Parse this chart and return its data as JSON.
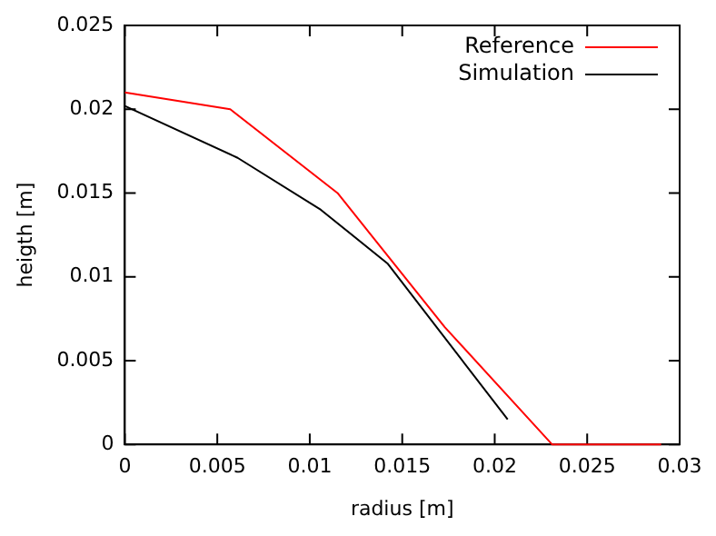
{
  "chart_data": {
    "type": "line",
    "xlabel": "radius [m]",
    "ylabel": "heigth [m]",
    "xlim": [
      0,
      0.03
    ],
    "ylim": [
      0,
      0.025
    ],
    "xticks": [
      0,
      0.005,
      0.01,
      0.015,
      0.02,
      0.025,
      0.03
    ],
    "yticks": [
      0,
      0.005,
      0.01,
      0.015,
      0.02,
      0.025
    ],
    "grid": false,
    "legend": "top right",
    "marker": "none",
    "line_style": "solid",
    "series": [
      {
        "name": "Reference",
        "color": "#ff0000",
        "x": [
          0,
          0.0057,
          0.0115,
          0.0173,
          0.0231,
          0.029
        ],
        "values": [
          0.021,
          0.02,
          0.015,
          0.007,
          0,
          0
        ]
      },
      {
        "name": "Simulation",
        "color": "#000000",
        "x": [
          0,
          0.0061,
          0.0106,
          0.0142,
          0.0207
        ],
        "values": [
          0.0202,
          0.0171,
          0.014,
          0.0108,
          0.0015
        ]
      }
    ]
  }
}
